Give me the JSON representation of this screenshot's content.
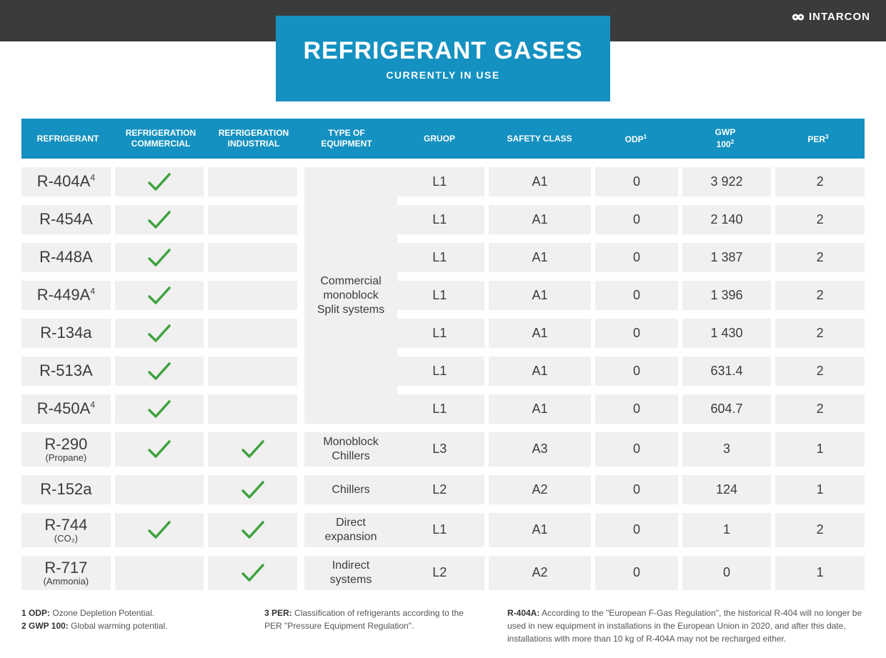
{
  "brand": "INTARCON",
  "title": {
    "main": "REFRIGERANT GASES",
    "sub": "CURRENTLY IN USE"
  },
  "colors": {
    "header_bg": "#1491c0",
    "header_text": "#ffffff",
    "topbar_bg": "#3b3b3b",
    "cell_bg": "#f0f0f0",
    "check_color": "#3fa23f",
    "text_color": "#3b3b3b"
  },
  "columns": [
    {
      "key": "refrigerant",
      "label": "REFRIGERANT",
      "sup": ""
    },
    {
      "key": "commercial",
      "label": "REFRIGERATION COMMERCIAL",
      "sup": ""
    },
    {
      "key": "industrial",
      "label": "REFRIGERATION INDUSTRIAL",
      "sup": ""
    },
    {
      "key": "equipment",
      "label": "TYPE OF EQUIPMENT",
      "sup": ""
    },
    {
      "key": "group",
      "label": "GRUOP",
      "sup": ""
    },
    {
      "key": "safety",
      "label": "SAFETY CLASS",
      "sup": ""
    },
    {
      "key": "odp",
      "label": "ODP",
      "sup": "1"
    },
    {
      "key": "gwp",
      "label": "GWP 100",
      "sup": "2"
    },
    {
      "key": "per",
      "label": "PER",
      "sup": "3"
    }
  ],
  "equipment_spans": [
    {
      "start": 0,
      "end": 6,
      "label": "Commercial\nmonoblock\nSplit systems"
    },
    {
      "start": 7,
      "end": 7,
      "label": "Monoblock\nChillers"
    },
    {
      "start": 8,
      "end": 8,
      "label": "Chillers"
    },
    {
      "start": 9,
      "end": 9,
      "label": "Direct\nexpansion"
    },
    {
      "start": 10,
      "end": 10,
      "label": "Indirect\nsystems"
    }
  ],
  "rows": [
    {
      "name": "R-404A",
      "sup": "4",
      "sub": "",
      "commercial": true,
      "industrial": false,
      "group": "L1",
      "safety": "A1",
      "odp": "0",
      "gwp": "3 922",
      "per": "2",
      "tall": false
    },
    {
      "name": "R-454A",
      "sup": "",
      "sub": "",
      "commercial": true,
      "industrial": false,
      "group": "L1",
      "safety": "A1",
      "odp": "0",
      "gwp": "2 140",
      "per": "2",
      "tall": false
    },
    {
      "name": "R-448A",
      "sup": "",
      "sub": "",
      "commercial": true,
      "industrial": false,
      "group": "L1",
      "safety": "A1",
      "odp": "0",
      "gwp": "1 387",
      "per": "2",
      "tall": false
    },
    {
      "name": "R-449A",
      "sup": "4",
      "sub": "",
      "commercial": true,
      "industrial": false,
      "group": "L1",
      "safety": "A1",
      "odp": "0",
      "gwp": "1 396",
      "per": "2",
      "tall": false
    },
    {
      "name": "R-134a",
      "sup": "",
      "sub": "",
      "commercial": true,
      "industrial": false,
      "group": "L1",
      "safety": "A1",
      "odp": "0",
      "gwp": "1 430",
      "per": "2",
      "tall": false
    },
    {
      "name": "R-513A",
      "sup": "",
      "sub": "",
      "commercial": true,
      "industrial": false,
      "group": "L1",
      "safety": "A1",
      "odp": "0",
      "gwp": "631.4",
      "per": "2",
      "tall": false
    },
    {
      "name": "R-450A",
      "sup": "4",
      "sub": "",
      "commercial": true,
      "industrial": false,
      "group": "L1",
      "safety": "A1",
      "odp": "0",
      "gwp": "604.7",
      "per": "2",
      "tall": false
    },
    {
      "name": "R-290",
      "sup": "",
      "sub": "(Propane)",
      "commercial": true,
      "industrial": true,
      "group": "L3",
      "safety": "A3",
      "odp": "0",
      "gwp": "3",
      "per": "1",
      "tall": true
    },
    {
      "name": "R-152a",
      "sup": "",
      "sub": "",
      "commercial": false,
      "industrial": true,
      "group": "L2",
      "safety": "A2",
      "odp": "0",
      "gwp": "124",
      "per": "1",
      "tall": false
    },
    {
      "name": "R-744",
      "sup": "",
      "sub": "(CO₂)",
      "commercial": true,
      "industrial": true,
      "group": "L1",
      "safety": "A1",
      "odp": "0",
      "gwp": "1",
      "per": "2",
      "tall": true
    },
    {
      "name": "R-717",
      "sup": "",
      "sub": "(Ammonia)",
      "commercial": false,
      "industrial": true,
      "group": "L2",
      "safety": "A2",
      "odp": "0",
      "gwp": "0",
      "per": "1",
      "tall": true
    }
  ],
  "footnotes": {
    "left": [
      {
        "bold": "1 ODP:",
        "text": " Ozone Depletion Potential."
      },
      {
        "bold": "2 GWP 100:",
        "text": " Global warming potential."
      }
    ],
    "mid": [
      {
        "bold": "3 PER:",
        "text": " Classification of refrigerants according to the PER \"Pressure Equipment Regulation\"."
      }
    ],
    "right": [
      {
        "bold": "R-404A:",
        "text": " According to the \"European F-Gas Regulation\", the historical R-404 will no longer be used in new equipment in installations in the European Union in 2020, and after this date, installations with more than 10 kg of R-404A may not be recharged either."
      }
    ]
  }
}
